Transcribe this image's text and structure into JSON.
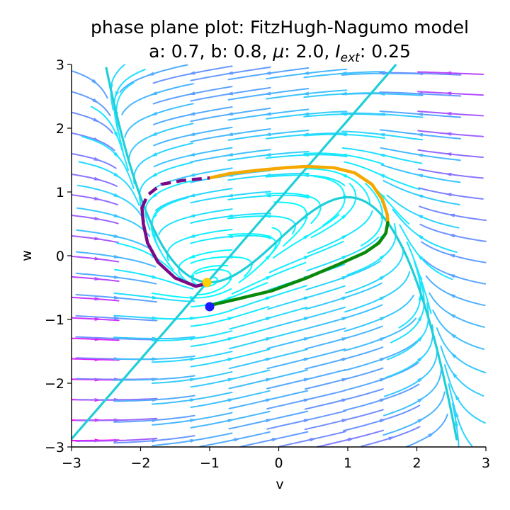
{
  "chart_data": {
    "type": "line",
    "title": "phase plane plot: FitzHugh-Nagumo model",
    "subtitle": {
      "prefix": "a: 0.7, b: 0.8, ",
      "mu_symbol": "μ",
      "mu_value": ": 2.0, ",
      "iext_symbol": "I",
      "iext_sub": "ext",
      "iext_value": ": 0.25"
    },
    "xlabel": "v",
    "ylabel": "w",
    "xlim": [
      -3,
      3
    ],
    "ylim": [
      -3,
      3
    ],
    "xticks": [
      -3,
      -2,
      -1,
      0,
      1,
      2,
      3
    ],
    "yticks": [
      -3,
      -2,
      -1,
      0,
      1,
      2,
      3
    ],
    "xtick_labels": [
      "−3",
      "−2",
      "−1",
      "0",
      "1",
      "2",
      "3"
    ],
    "ytick_labels": [
      "−3",
      "−2",
      "−1",
      "0",
      "1",
      "2",
      "3"
    ],
    "grid": false,
    "colors": {
      "nullcline": "#1fcfd8",
      "stream_slow": "#00ffff",
      "stream_fast": "#ff00ff",
      "trajectory_orange": "#f5a800",
      "trajectory_green": "#0a8a0a",
      "trajectory_purple": "#7a0a88",
      "start_point": "#1a1aff",
      "end_point": "#ffd000"
    },
    "model": {
      "a": 0.7,
      "b": 0.8,
      "mu": 2.0,
      "I_ext": 0.25
    },
    "series": [
      {
        "kind": "trajectory",
        "color": "#f5a800",
        "points": [
          [
            -1.0,
            1.22
          ],
          [
            -0.7,
            1.29
          ],
          [
            -0.3,
            1.34
          ],
          [
            0.1,
            1.38
          ],
          [
            0.4,
            1.4
          ],
          [
            0.8,
            1.38
          ],
          [
            1.1,
            1.3
          ],
          [
            1.35,
            1.12
          ],
          [
            1.5,
            0.88
          ],
          [
            1.57,
            0.65
          ],
          [
            1.58,
            0.52
          ]
        ]
      },
      {
        "kind": "trajectory",
        "color": "#0a8a0a",
        "points": [
          [
            -1.0,
            -0.78
          ],
          [
            -0.6,
            -0.68
          ],
          [
            -0.1,
            -0.55
          ],
          [
            0.4,
            -0.35
          ],
          [
            0.9,
            -0.12
          ],
          [
            1.25,
            0.05
          ],
          [
            1.45,
            0.2
          ],
          [
            1.55,
            0.35
          ],
          [
            1.58,
            0.52
          ]
        ]
      },
      {
        "kind": "trajectory",
        "color": "#7a0a88",
        "points": [
          [
            -1.0,
            -0.42
          ],
          [
            -1.2,
            -0.48
          ],
          [
            -1.5,
            -0.35
          ],
          [
            -1.75,
            -0.1
          ],
          [
            -1.9,
            0.2
          ],
          [
            -1.96,
            0.5
          ],
          [
            -1.98,
            0.75
          ]
        ]
      },
      {
        "kind": "trajectory",
        "color": "#7a0a88",
        "dashed": true,
        "points": [
          [
            -1.98,
            0.75
          ],
          [
            -1.9,
            0.95
          ],
          [
            -1.7,
            1.12
          ],
          [
            -1.4,
            1.18
          ],
          [
            -1.0,
            1.22
          ]
        ]
      }
    ],
    "points": [
      {
        "x": -1.0,
        "y": -0.8,
        "color": "#1a1aff"
      },
      {
        "x": -1.04,
        "y": -0.42,
        "color": "#ffd000"
      }
    ]
  }
}
